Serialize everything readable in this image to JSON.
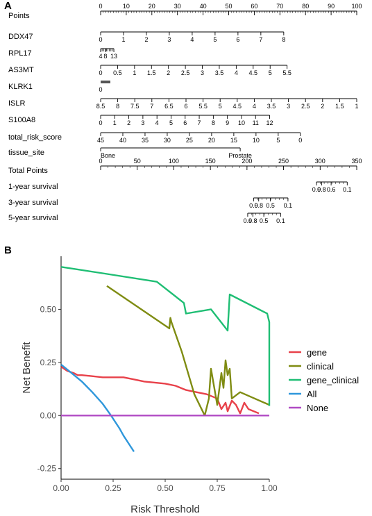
{
  "panel_a_letter": "A",
  "panel_b_letter": "B",
  "chart_data": [
    {
      "type": "nomogram",
      "rows": [
        {
          "label": "Points",
          "ticks": [
            "0",
            "10",
            "20",
            "30",
            "40",
            "50",
            "60",
            "70",
            "80",
            "90",
            "100"
          ],
          "tick_values": [
            0,
            10,
            20,
            30,
            40,
            50,
            60,
            70,
            80,
            90,
            100
          ]
        },
        {
          "label": "DDX47",
          "ticks": [
            "0",
            "1",
            "2",
            "3",
            "4",
            "5",
            "6",
            "7",
            "8"
          ],
          "tick_values": [
            0,
            1,
            2,
            3,
            4,
            5,
            6,
            7,
            8
          ],
          "points_min": 0,
          "points_max": 71.5
        },
        {
          "label": "RPL17",
          "ticks": [
            "4",
            "8",
            "13"
          ],
          "tick_values": [
            4,
            8,
            13
          ],
          "points_min": 0,
          "points_max": 3
        },
        {
          "label": "AS3MT",
          "ticks": [
            "0",
            "0.5",
            "1",
            "1.5",
            "2",
            "2.5",
            "3",
            "3.5",
            "4",
            "4.5",
            "5",
            "5.5"
          ],
          "tick_values": [
            0,
            0.5,
            1,
            1.5,
            2,
            2.5,
            3,
            3.5,
            4,
            4.5,
            5,
            5.5
          ],
          "points_min": 0,
          "points_max": 72.8
        },
        {
          "label": "KLRK1",
          "ticks": [
            "0"
          ],
          "tick_values": [
            0
          ],
          "points_min": 0,
          "points_max": 3
        },
        {
          "label": "ISLR",
          "ticks": [
            "8.5",
            "8",
            "7.5",
            "7",
            "6.5",
            "6",
            "5.5",
            "5",
            "4.5",
            "4",
            "3.5",
            "3",
            "2.5",
            "2",
            "1.5",
            "1"
          ],
          "tick_values": [
            8.5,
            8,
            7.5,
            7,
            6.5,
            6,
            5.5,
            5,
            4.5,
            4,
            3.5,
            3,
            2.5,
            2,
            1.5,
            1
          ],
          "points_min": 0,
          "points_max": 100
        },
        {
          "label": "S100A8",
          "ticks": [
            "0",
            "1",
            "2",
            "3",
            "4",
            "5",
            "6",
            "7",
            "8",
            "9",
            "10",
            "11",
            "12"
          ],
          "tick_values": [
            0,
            1,
            2,
            3,
            4,
            5,
            6,
            7,
            8,
            9,
            10,
            11,
            12
          ],
          "points_min": 0,
          "points_max": 66
        },
        {
          "label": "total_risk_score",
          "ticks": [
            "45",
            "40",
            "35",
            "30",
            "25",
            "20",
            "15",
            "10",
            "5",
            "0"
          ],
          "tick_values": [
            45,
            40,
            35,
            30,
            25,
            20,
            15,
            10,
            5,
            0
          ],
          "points_min": 0,
          "points_max": 78
        },
        {
          "label": "tissue_site",
          "ticks": [
            "Bone",
            "Prostate"
          ],
          "tick_values": [
            "Bone",
            "Prostate"
          ],
          "points_min": 0,
          "points_max": 54.5
        },
        {
          "label": "Total Points",
          "ticks": [
            "0",
            "50",
            "100",
            "150",
            "200",
            "250",
            "300",
            "350"
          ],
          "tick_values": [
            0,
            50,
            100,
            150,
            200,
            250,
            300,
            350
          ]
        },
        {
          "label": "1-year survival",
          "ticks": [
            "0.9",
            "0.8",
            "0.6",
            "0.1"
          ],
          "tick_values": [
            0.9,
            0.8,
            0.6,
            0.1
          ],
          "total_points": [
            295,
            302,
            315,
            337
          ]
        },
        {
          "label": "3-year survival",
          "ticks": [
            "0.9",
            "0.8",
            "0.5",
            "0.1"
          ],
          "tick_values": [
            0.9,
            0.8,
            0.5,
            0.1
          ],
          "total_points": [
            209,
            216,
            232,
            256
          ]
        },
        {
          "label": "5-year survival",
          "ticks": [
            "0.9",
            "0.8",
            "0.5",
            "0.1"
          ],
          "tick_values": [
            0.9,
            0.8,
            0.5,
            0.1
          ],
          "total_points": [
            201,
            208,
            223,
            246
          ]
        }
      ]
    },
    {
      "type": "line",
      "xlabel": "Risk Threshold",
      "ylabel": "Net Benefit",
      "xlim": [
        0,
        1
      ],
      "ylim": [
        -0.3,
        0.75
      ],
      "x_ticks": [
        "0.00",
        "0.25",
        "0.50",
        "0.75",
        "1.00"
      ],
      "x_tick_values": [
        0,
        0.25,
        0.5,
        0.75,
        1.0
      ],
      "y_ticks": [
        "-0.25",
        "0.00",
        "0.25",
        "0.50"
      ],
      "y_tick_values": [
        -0.25,
        0,
        0.25,
        0.5
      ],
      "legend_position": "right",
      "series": [
        {
          "name": "gene",
          "color": "#E8414A",
          "x": [
            0.0,
            0.03,
            0.06,
            0.08,
            0.1,
            0.15,
            0.2,
            0.25,
            0.3,
            0.35,
            0.4,
            0.45,
            0.5,
            0.55,
            0.6,
            0.65,
            0.7,
            0.75,
            0.77,
            0.79,
            0.8,
            0.82,
            0.84,
            0.86,
            0.88,
            0.9,
            0.95
          ],
          "y": [
            0.23,
            0.21,
            0.2,
            0.19,
            0.19,
            0.185,
            0.18,
            0.18,
            0.18,
            0.17,
            0.16,
            0.155,
            0.15,
            0.14,
            0.12,
            0.11,
            0.1,
            0.08,
            0.03,
            0.06,
            0.02,
            0.07,
            0.05,
            0.01,
            0.06,
            0.03,
            0.01
          ]
        },
        {
          "name": "clinical",
          "color": "#7F8C12",
          "x": [
            0.22,
            0.52,
            0.525,
            0.53,
            0.58,
            0.64,
            0.69,
            0.71,
            0.72,
            0.75,
            0.77,
            0.78,
            0.79,
            0.8,
            0.81,
            0.82,
            0.86,
            1.0
          ],
          "y": [
            0.61,
            0.41,
            0.46,
            0.44,
            0.3,
            0.1,
            0.0,
            0.08,
            0.22,
            0.05,
            0.2,
            0.13,
            0.26,
            0.19,
            0.22,
            0.08,
            0.11,
            0.05
          ]
        },
        {
          "name": "gene_clinical",
          "color": "#1FBE74",
          "x": [
            0.0,
            0.2,
            0.46,
            0.59,
            0.6,
            0.72,
            0.8,
            0.81,
            0.99,
            1.0,
            1.0
          ],
          "y": [
            0.7,
            0.67,
            0.63,
            0.53,
            0.48,
            0.5,
            0.4,
            0.57,
            0.48,
            0.44,
            0.045
          ]
        },
        {
          "name": "All",
          "color": "#2E97DB",
          "x": [
            0.0,
            0.05,
            0.1,
            0.15,
            0.2,
            0.24,
            0.28,
            0.3,
            0.33,
            0.35
          ],
          "y": [
            0.24,
            0.2,
            0.16,
            0.11,
            0.055,
            0.0,
            -0.06,
            -0.095,
            -0.14,
            -0.17
          ]
        },
        {
          "name": "None",
          "color": "#B04AC4",
          "x": [
            0.0,
            1.0
          ],
          "y": [
            0.0,
            0.0
          ]
        }
      ]
    }
  ]
}
